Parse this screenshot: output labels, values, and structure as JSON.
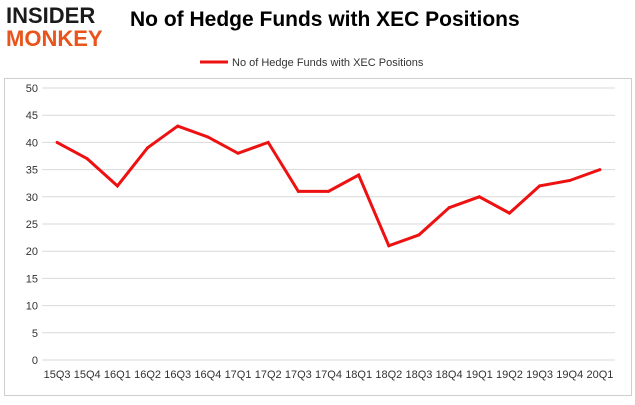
{
  "brand": {
    "line1": "INSIDER",
    "line2": "MONKEY"
  },
  "chart_data": {
    "type": "line",
    "title": "No of Hedge Funds with XEC Positions",
    "xlabel": "",
    "ylabel": "",
    "categories": [
      "15Q3",
      "15Q4",
      "16Q1",
      "16Q2",
      "16Q3",
      "16Q4",
      "17Q1",
      "17Q2",
      "17Q3",
      "17Q4",
      "18Q1",
      "18Q2",
      "18Q3",
      "18Q4",
      "19Q1",
      "19Q2",
      "19Q3",
      "19Q4",
      "20Q1"
    ],
    "series": [
      {
        "name": "No of Hedge Funds with XEC Positions",
        "values": [
          40,
          37,
          32,
          39,
          43,
          41,
          38,
          40,
          31,
          31,
          34,
          21,
          23,
          28,
          30,
          27,
          32,
          33,
          35
        ]
      }
    ],
    "ylim": [
      0,
      50
    ],
    "yticks": [
      0,
      5,
      10,
      15,
      20,
      25,
      30,
      35,
      40,
      45,
      50
    ],
    "grid": true,
    "legend": "top-center",
    "colors": {
      "series": "#ee1111",
      "grid": "#d9d9d9"
    }
  }
}
